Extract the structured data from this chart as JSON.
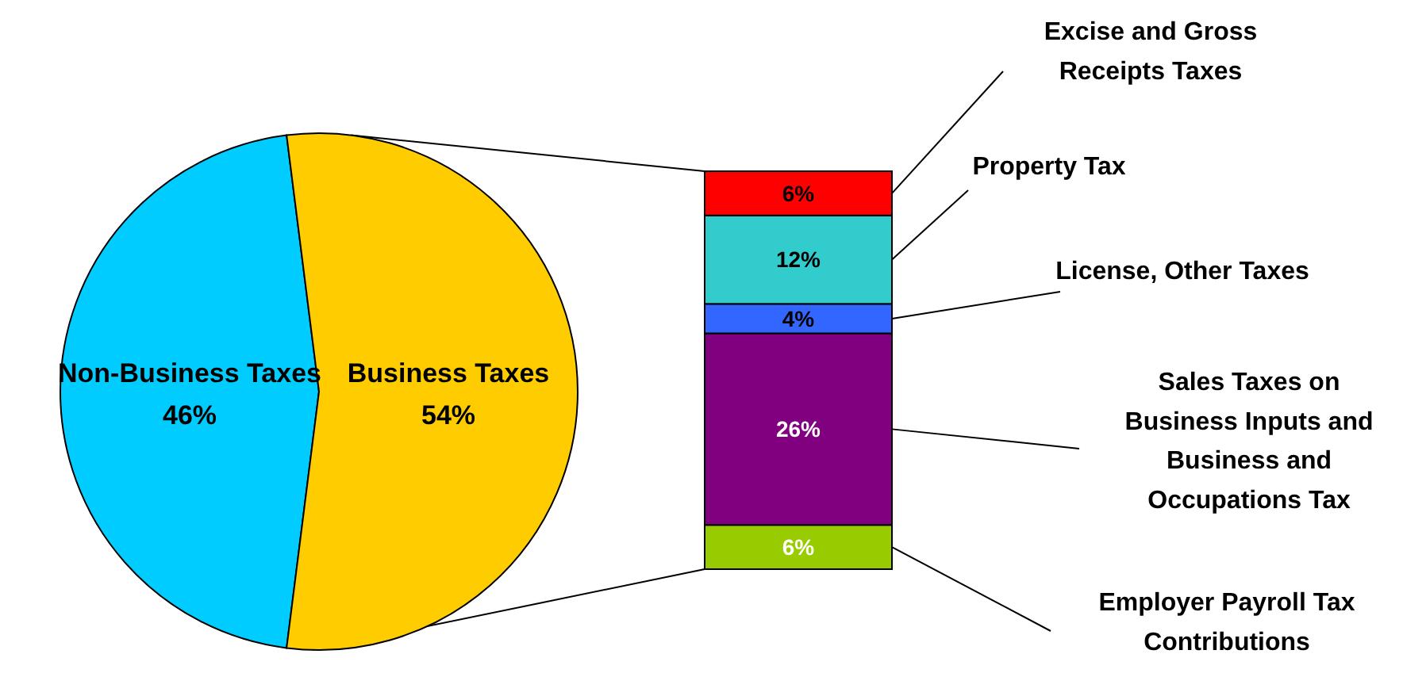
{
  "chart_data": [
    {
      "type": "pie",
      "categories": [
        "Non-Business Taxes",
        "Business Taxes"
      ],
      "values": [
        46,
        54
      ],
      "colors": [
        "#00ccff",
        "#ffcc00"
      ],
      "value_labels": [
        "46%",
        "54%"
      ]
    },
    {
      "type": "bar",
      "stacked": true,
      "categories": [
        null
      ],
      "series": [
        {
          "name": "Employer Payroll Tax\nContributions",
          "color": "#99cc00",
          "values": [
            6
          ],
          "value_labels": [
            "6%"
          ]
        },
        {
          "name": "Sales Taxes on\nBusiness Inputs and\nBusiness and\nOccupations Tax",
          "color": "#800080",
          "values": [
            26
          ],
          "value_labels": [
            "26%"
          ]
        },
        {
          "name": "License, Other Taxes",
          "color": "#3366ff",
          "values": [
            4
          ],
          "value_labels": [
            "4%"
          ]
        },
        {
          "name": "Property Tax",
          "color": "#33cccc",
          "values": [
            12
          ],
          "value_labels": [
            "12%"
          ]
        },
        {
          "name": "Excise and Gross\nReceipts Taxes",
          "color": "#ff0000",
          "values": [
            6
          ],
          "value_labels": [
            "6%"
          ]
        }
      ]
    }
  ]
}
